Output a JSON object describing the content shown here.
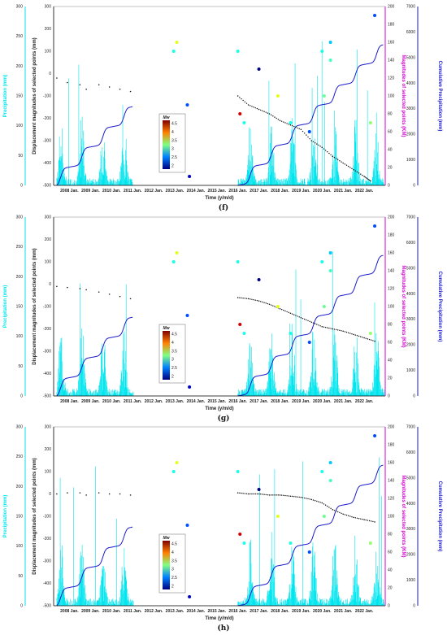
{
  "colors": {
    "precipitation": "#00e5ee",
    "cumulative": "#1a1acc",
    "magnitude_axis": "#d600d6",
    "displacement": "#111111"
  },
  "colorbar": {
    "label": "Mw",
    "ticks": [
      "4.5",
      "4",
      "3.5",
      "3",
      "2.5",
      "2"
    ],
    "range": [
      2,
      4.5
    ]
  },
  "chart_data": [
    {
      "type": "line",
      "caption": "(f)",
      "xlabel": "Time (y/m/d)",
      "ylabel_left": "Displacement magnitudes of selected points (mm)",
      "ylabel_precip": "Precipitation (mm)",
      "ylabel_mag": "Magnitudes of selected points (KM)",
      "ylabel_cum": "Cumulative Precipitation (mm)",
      "x_ticks": [
        "2008 Jan.",
        "2009 Jan.",
        "2010 Jan.",
        "2011 Jan.",
        "2012 Jan.",
        "2013 Jan.",
        "2014 Jan.",
        "2015 Jan.",
        "2016 Jan.",
        "2017 Jan.",
        "2018 Jan.",
        "2019 Jan.",
        "2020 Jan.",
        "2021 Jan.",
        "2022 Jan."
      ],
      "xlim": [
        2007.25,
        2023.0
      ],
      "displacement_ticks": [
        "300",
        "200",
        "100",
        "0",
        "-100",
        "-200",
        "-300",
        "-400",
        "-500"
      ],
      "displacement_ylim": [
        -500,
        300
      ],
      "precip_ticks": [
        "300",
        "250",
        "200",
        "150",
        "100",
        "50",
        "0"
      ],
      "precip_ylim": [
        0,
        300
      ],
      "mag_ticks": [
        "200",
        "180",
        "160",
        "140",
        "120",
        "100",
        "80",
        "60",
        "40",
        "20",
        "0"
      ],
      "mag_ylim": [
        0,
        200
      ],
      "cum_ticks": [
        "7000",
        "6000",
        "5000",
        "4000",
        "3000",
        "2000",
        "1000",
        "0"
      ],
      "cum_ylim": [
        0,
        7000
      ],
      "displacement": [
        [
          2007.4,
          -20
        ],
        [
          2007.9,
          -40
        ],
        [
          2008.5,
          -50
        ],
        [
          2008.8,
          -70
        ],
        [
          2009.4,
          -50
        ],
        [
          2009.9,
          -60
        ],
        [
          2010.4,
          -70
        ],
        [
          2010.9,
          -80
        ],
        [
          2016.0,
          -100
        ],
        [
          2016.5,
          -140
        ],
        [
          2017.0,
          -160
        ],
        [
          2017.5,
          -180
        ],
        [
          2018.0,
          -210
        ],
        [
          2018.5,
          -230
        ],
        [
          2019.0,
          -250
        ],
        [
          2019.5,
          -300
        ],
        [
          2020.0,
          -330
        ],
        [
          2020.5,
          -370
        ],
        [
          2021.0,
          -400
        ],
        [
          2021.5,
          -430
        ],
        [
          2022.0,
          -460
        ],
        [
          2022.3,
          -480
        ]
      ],
      "earthquakes": [
        [
          2012.95,
          150,
          3.0
        ],
        [
          2013.1,
          160,
          3.5
        ],
        [
          2013.6,
          90,
          2.5
        ],
        [
          2013.7,
          10,
          2.2
        ],
        [
          2016.0,
          150,
          3.0
        ],
        [
          2016.1,
          80,
          4.3
        ],
        [
          2016.3,
          70,
          3.0
        ],
        [
          2017.0,
          130,
          2.0
        ],
        [
          2017.9,
          100,
          3.5
        ],
        [
          2018.5,
          70,
          3.0
        ],
        [
          2019.4,
          60,
          2.5
        ],
        [
          2020.0,
          150,
          3.0
        ],
        [
          2020.1,
          100,
          3.2
        ],
        [
          2020.4,
          160,
          2.8
        ],
        [
          2020.4,
          140,
          3.1
        ],
        [
          2022.3,
          70,
          3.3
        ],
        [
          2022.5,
          190,
          2.5
        ]
      ]
    },
    {
      "type": "line",
      "caption": "(g)",
      "xlabel": "Time (y/m/d)",
      "ylabel_left": "Displacement magnitudes of selected points (mm)",
      "ylabel_precip": "Precipitation (mm)",
      "ylabel_mag": "Magnitudes of selected points (KM)",
      "ylabel_cum": "Cumulative Precipitation (mm)",
      "x_ticks": [
        "2008 Jan.",
        "2009 Jan.",
        "2010 Jan.",
        "2011 Jan.",
        "2012 Jan.",
        "2013 Jan.",
        "2014 Jan.",
        "2015 Jan.",
        "2016 Jan.",
        "2017 Jan.",
        "2018 Jan.",
        "2019 Jan.",
        "2020 Jan.",
        "2021 Jan.",
        "2022 Jan."
      ],
      "xlim": [
        2007.25,
        2023.0
      ],
      "displacement_ticks": [
        "300",
        "200",
        "100",
        "0",
        "-100",
        "-200",
        "-300",
        "-400",
        "-500"
      ],
      "displacement_ylim": [
        -500,
        300
      ],
      "precip_ticks": [
        "300",
        "250",
        "200",
        "150",
        "100",
        "50",
        "0"
      ],
      "precip_ylim": [
        0,
        300
      ],
      "mag_ticks": [
        "200",
        "180",
        "160",
        "140",
        "120",
        "100",
        "80",
        "60",
        "40",
        "20",
        "0"
      ],
      "mag_ylim": [
        0,
        200
      ],
      "cum_ticks": [
        "7000",
        "6000",
        "5000",
        "4000",
        "3000",
        "2000",
        "1000",
        "0"
      ],
      "cum_ylim": [
        0,
        7000
      ],
      "displacement": [
        [
          2007.4,
          -10
        ],
        [
          2007.9,
          -15
        ],
        [
          2008.5,
          -20
        ],
        [
          2008.8,
          -25
        ],
        [
          2009.4,
          -35
        ],
        [
          2009.9,
          -45
        ],
        [
          2010.4,
          -55
        ],
        [
          2010.9,
          -65
        ],
        [
          2016.0,
          -60
        ],
        [
          2016.5,
          -65
        ],
        [
          2017.0,
          -75
        ],
        [
          2017.5,
          -90
        ],
        [
          2018.0,
          -110
        ],
        [
          2018.5,
          -130
        ],
        [
          2019.0,
          -150
        ],
        [
          2019.5,
          -170
        ],
        [
          2020.0,
          -190
        ],
        [
          2020.5,
          -200
        ],
        [
          2021.0,
          -210
        ],
        [
          2021.5,
          -225
        ],
        [
          2022.0,
          -240
        ],
        [
          2022.5,
          -255
        ]
      ],
      "earthquakes": [
        [
          2012.95,
          150,
          3.0
        ],
        [
          2013.1,
          160,
          3.5
        ],
        [
          2013.6,
          90,
          2.5
        ],
        [
          2013.7,
          10,
          2.2
        ],
        [
          2016.0,
          150,
          3.0
        ],
        [
          2016.1,
          80,
          4.3
        ],
        [
          2016.3,
          70,
          3.0
        ],
        [
          2017.0,
          130,
          2.0
        ],
        [
          2017.9,
          100,
          3.5
        ],
        [
          2018.5,
          70,
          3.0
        ],
        [
          2019.4,
          60,
          2.5
        ],
        [
          2020.0,
          150,
          3.0
        ],
        [
          2020.1,
          100,
          3.2
        ],
        [
          2020.4,
          160,
          2.8
        ],
        [
          2020.4,
          140,
          3.1
        ],
        [
          2022.3,
          70,
          3.3
        ],
        [
          2022.5,
          190,
          2.5
        ]
      ]
    },
    {
      "type": "line",
      "caption": "(h)",
      "xlabel": "Time (y/m/d)",
      "ylabel_left": "Displacement magnitudes of selected points (mm)",
      "ylabel_precip": "Precipitation (mm)",
      "ylabel_mag": "Magnitudes of selected points (KM)",
      "ylabel_cum": "Cumulative Precipitation (mm)",
      "x_ticks": [
        "2008 Jan.",
        "2009 Jan.",
        "2010 Jan.",
        "2011 Jan.",
        "2012 Jan.",
        "2013 Jan.",
        "2014 Jan.",
        "2015 Jan.",
        "2016 Jan.",
        "2017 Jan.",
        "2018 Jan.",
        "2019 Jan.",
        "2020 Jan.",
        "2021 Jan.",
        "2022 Jan."
      ],
      "xlim": [
        2007.25,
        2023.0
      ],
      "displacement_ticks": [
        "300",
        "200",
        "100",
        "0",
        "-100",
        "-200",
        "-300",
        "-400",
        "-500"
      ],
      "displacement_ylim": [
        -500,
        300
      ],
      "precip_ticks": [
        "300",
        "250",
        "200",
        "150",
        "100",
        "50",
        "0"
      ],
      "precip_ylim": [
        0,
        300
      ],
      "mag_ticks": [
        "200",
        "180",
        "160",
        "140",
        "120",
        "100",
        "80",
        "60",
        "40",
        "20",
        "0"
      ],
      "mag_ylim": [
        0,
        200
      ],
      "cum_ticks": [
        "7000",
        "6000",
        "5000",
        "4000",
        "3000",
        "2000",
        "1000",
        "0"
      ],
      "cum_ylim": [
        0,
        7000
      ],
      "displacement": [
        [
          2007.4,
          0
        ],
        [
          2007.9,
          5
        ],
        [
          2008.5,
          5
        ],
        [
          2008.8,
          -5
        ],
        [
          2009.4,
          5
        ],
        [
          2009.9,
          0
        ],
        [
          2010.4,
          0
        ],
        [
          2010.9,
          -5
        ],
        [
          2016.0,
          5
        ],
        [
          2016.5,
          0
        ],
        [
          2017.0,
          0
        ],
        [
          2017.5,
          -5
        ],
        [
          2018.0,
          -5
        ],
        [
          2018.5,
          -10
        ],
        [
          2019.0,
          -15
        ],
        [
          2019.5,
          -25
        ],
        [
          2020.0,
          -40
        ],
        [
          2020.5,
          -70
        ],
        [
          2021.0,
          -90
        ],
        [
          2021.5,
          -105
        ],
        [
          2022.0,
          -115
        ],
        [
          2022.5,
          -125
        ]
      ],
      "earthquakes": [
        [
          2012.95,
          150,
          3.0
        ],
        [
          2013.1,
          160,
          3.5
        ],
        [
          2013.6,
          90,
          2.5
        ],
        [
          2013.7,
          10,
          2.2
        ],
        [
          2016.0,
          150,
          3.0
        ],
        [
          2016.1,
          80,
          4.3
        ],
        [
          2016.3,
          70,
          3.0
        ],
        [
          2017.0,
          130,
          2.0
        ],
        [
          2017.9,
          100,
          3.5
        ],
        [
          2018.5,
          70,
          3.0
        ],
        [
          2019.4,
          60,
          2.5
        ],
        [
          2020.0,
          150,
          3.0
        ],
        [
          2020.1,
          100,
          3.2
        ],
        [
          2020.4,
          160,
          2.8
        ],
        [
          2020.4,
          140,
          3.1
        ],
        [
          2022.3,
          70,
          3.3
        ],
        [
          2022.5,
          190,
          2.5
        ]
      ]
    }
  ]
}
